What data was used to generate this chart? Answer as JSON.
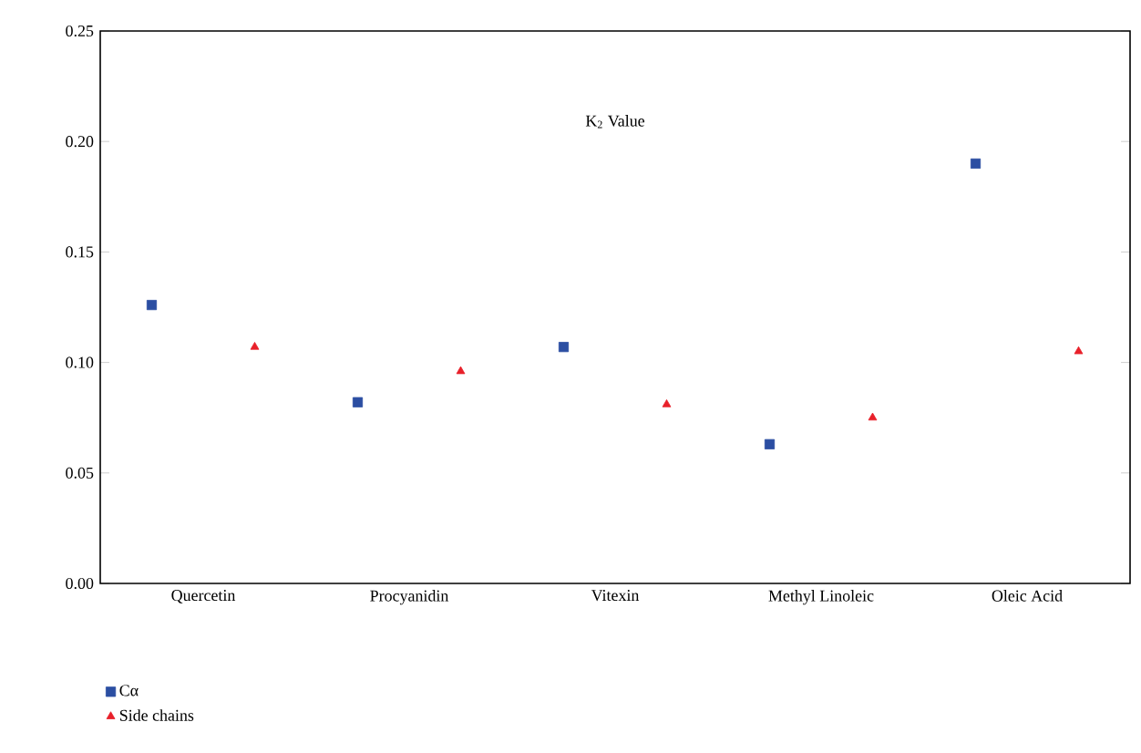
{
  "chart_data": {
    "type": "scatter",
    "title": "K$_{2}$ Value",
    "categories": [
      "Quercetin",
      "Procyanidin",
      "Vitexin",
      "Methyl Linoleic",
      "Oleic Acid"
    ],
    "series": [
      {
        "name": "Cα",
        "color": "#2b4ea2",
        "marker": "square",
        "values": [
          0.126,
          0.082,
          0.107,
          0.063,
          0.19
        ]
      },
      {
        "name": "Side chains",
        "color": "#e8202a",
        "marker": "triangle",
        "values": [
          0.107,
          0.096,
          0.081,
          0.075,
          0.105
        ]
      }
    ],
    "ylim": [
      0,
      0.25
    ],
    "yticks": [
      {
        "value": 0,
        "label": "0.00"
      },
      {
        "value": 0.05,
        "label": "0.05"
      },
      {
        "value": 0.1,
        "label": "0.10"
      },
      {
        "value": 0.15,
        "label": "0.15"
      },
      {
        "value": 0.2,
        "label": "0.20"
      },
      {
        "value": 0.25,
        "label": "0.25"
      }
    ],
    "grid": false,
    "legend": "bottom left"
  }
}
